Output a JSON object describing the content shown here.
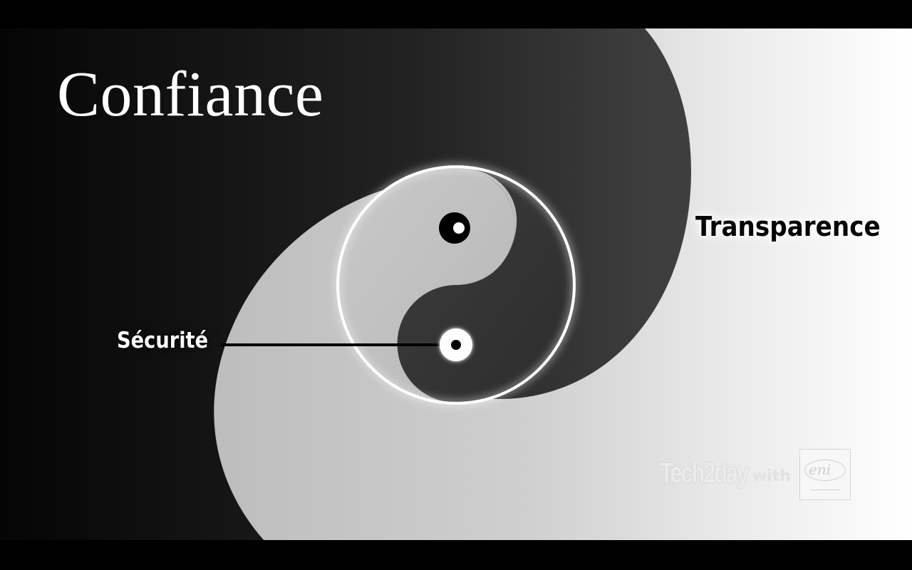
{
  "slide": {
    "title": "Confiance",
    "labels": {
      "transparence": "Transparence",
      "securite": "Sécurité"
    }
  },
  "branding": {
    "tech_text": "Tech2day",
    "with_text": "with",
    "partner_text": "eni"
  },
  "colors": {
    "dark_side": "#3a3a3a",
    "light_side": "#c8c8c8",
    "ring": "#ffffff",
    "background_dark": "#0a0a0a",
    "background_light": "#f2f2f2"
  }
}
